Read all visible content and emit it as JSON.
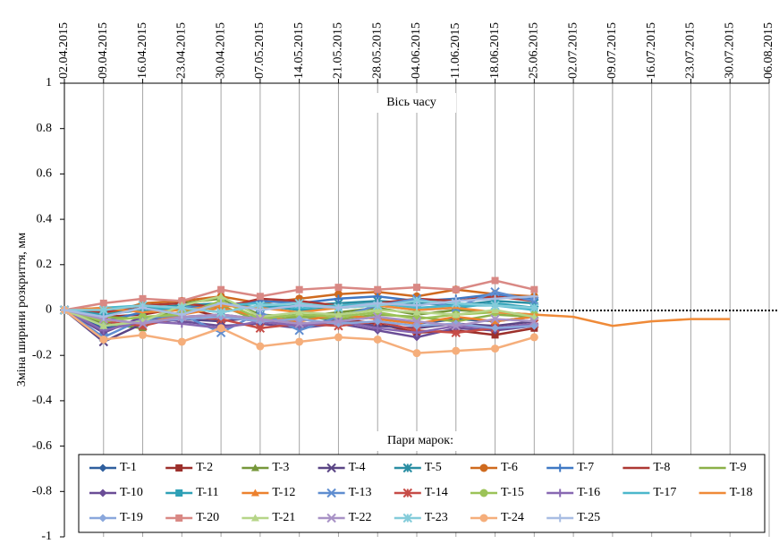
{
  "chart_data": {
    "type": "line",
    "ylabel": "Зміна ширини розкриття, мм",
    "annotation": "Вісь часу",
    "legend_title": "Пари марок:",
    "legend": "bottom",
    "grid": "x",
    "x": [
      "02.04.2015",
      "09.04.2015",
      "16.04.2015",
      "23.04.2015",
      "30.04.2015",
      "07.05.2015",
      "14.05.2015",
      "21.05.2015",
      "28.05.2015",
      "04.06.2015",
      "11.06.2015",
      "18.06.2015",
      "25.06.2015",
      "02.07.2015",
      "09.07.2015",
      "16.07.2015",
      "23.07.2015",
      "30.07.2015"
    ],
    "xlim": [
      "02.04.2015",
      "06.08.2015"
    ],
    "xticks": [
      "02.04.2015",
      "09.04.2015",
      "16.04.2015",
      "23.04.2015",
      "30.04.2015",
      "07.05.2015",
      "14.05.2015",
      "21.05.2015",
      "28.05.2015",
      "04.06.2015",
      "11.06.2015",
      "18.06.2015",
      "25.06.2015",
      "02.07.2015",
      "09.07.2015",
      "16.07.2015",
      "23.07.2015",
      "30.07.2015",
      "06.08.2015"
    ],
    "ylim": [
      -1,
      1
    ],
    "yticks": [
      -1,
      -0.8,
      -0.6,
      -0.4,
      -0.2,
      0,
      0.2,
      0.4,
      0.6,
      0.8,
      1
    ],
    "series": [
      {
        "name": "T-1",
        "color": "#2f5f9e",
        "marker": "diamond",
        "values": [
          0,
          -0.08,
          -0.05,
          -0.03,
          -0.02,
          -0.04,
          -0.02,
          -0.05,
          -0.03,
          -0.06,
          -0.04,
          -0.05,
          -0.03,
          null,
          null,
          null,
          null,
          null
        ]
      },
      {
        "name": "T-2",
        "color": "#9c2f2b",
        "marker": "square",
        "values": [
          0,
          -0.03,
          -0.02,
          0.01,
          -0.03,
          -0.05,
          -0.07,
          -0.04,
          -0.06,
          -0.1,
          -0.09,
          -0.11,
          -0.08,
          null,
          null,
          null,
          null,
          null
        ]
      },
      {
        "name": "T-3",
        "color": "#76973a",
        "marker": "triangle",
        "values": [
          0,
          -0.06,
          -0.08,
          0.03,
          0.05,
          -0.02,
          -0.03,
          -0.01,
          0.01,
          -0.02,
          0,
          -0.01,
          -0.02,
          null,
          null,
          null,
          null,
          null
        ]
      },
      {
        "name": "T-4",
        "color": "#5a4585",
        "marker": "x",
        "values": [
          0,
          -0.14,
          -0.06,
          -0.04,
          -0.05,
          -0.03,
          -0.06,
          -0.05,
          -0.07,
          -0.08,
          -0.06,
          -0.07,
          -0.05,
          null,
          null,
          null,
          null,
          null
        ]
      },
      {
        "name": "T-5",
        "color": "#2a8ea3",
        "marker": "star",
        "values": [
          0,
          -0.02,
          0.01,
          0.02,
          0.03,
          0.01,
          0.02,
          0.03,
          0.04,
          0.03,
          0.02,
          0.04,
          0.03,
          null,
          null,
          null,
          null,
          null
        ]
      },
      {
        "name": "T-6",
        "color": "#cf6a1e",
        "marker": "circle",
        "values": [
          0,
          -0.02,
          0.03,
          0.04,
          0.06,
          0.03,
          0.05,
          0.07,
          0.08,
          0.06,
          0.09,
          0.07,
          0.06,
          null,
          null,
          null,
          null,
          null
        ]
      },
      {
        "name": "T-7",
        "color": "#3f78c4",
        "marker": "plus",
        "values": [
          0,
          -0.05,
          -0.01,
          0.01,
          0.02,
          0.04,
          0.03,
          0.05,
          0.06,
          0.04,
          0.05,
          0.07,
          0.05,
          null,
          null,
          null,
          null,
          null
        ]
      },
      {
        "name": "T-8",
        "color": "#ad3833",
        "marker": "dash",
        "values": [
          0,
          -0.01,
          0.02,
          0.03,
          0.01,
          0.05,
          0.04,
          0.02,
          0.03,
          0.05,
          0.04,
          0.06,
          0.04,
          null,
          null,
          null,
          null,
          null
        ]
      },
      {
        "name": "T-9",
        "color": "#8bb048",
        "marker": "dash",
        "values": [
          0,
          -0.03,
          -0.04,
          -0.01,
          0.02,
          -0.05,
          -0.03,
          -0.04,
          -0.02,
          -0.03,
          -0.05,
          -0.02,
          -0.03,
          null,
          null,
          null,
          null,
          null
        ]
      },
      {
        "name": "T-10",
        "color": "#6a4d96",
        "marker": "diamond",
        "values": [
          0,
          -0.1,
          -0.03,
          -0.05,
          -0.07,
          -0.06,
          -0.08,
          -0.06,
          -0.09,
          -0.12,
          -0.08,
          -0.09,
          -0.07,
          null,
          null,
          null,
          null,
          null
        ]
      },
      {
        "name": "T-11",
        "color": "#2ea0b6",
        "marker": "square",
        "values": [
          0,
          -0.02,
          0,
          0.01,
          -0.01,
          0.02,
          0,
          0.01,
          0.02,
          0,
          0.01,
          0.03,
          0.01,
          null,
          null,
          null,
          null,
          null
        ]
      },
      {
        "name": "T-12",
        "color": "#ec812e",
        "marker": "triangle",
        "values": [
          0,
          -0.04,
          -0.06,
          -0.02,
          0.01,
          -0.03,
          -0.05,
          -0.02,
          -0.04,
          -0.06,
          -0.03,
          -0.05,
          -0.03,
          null,
          null,
          null,
          null,
          null
        ]
      },
      {
        "name": "T-13",
        "color": "#5f8dd0",
        "marker": "x",
        "values": [
          0,
          -0.12,
          -0.04,
          -0.02,
          -0.1,
          -0.01,
          -0.09,
          -0.03,
          0.02,
          0.05,
          0.01,
          0.08,
          0.04,
          null,
          null,
          null,
          null,
          null
        ]
      },
      {
        "name": "T-14",
        "color": "#c64c47",
        "marker": "star",
        "values": [
          0,
          -0.05,
          -0.07,
          -0.03,
          -0.04,
          -0.08,
          -0.06,
          -0.07,
          -0.05,
          -0.09,
          -0.1,
          -0.08,
          -0.06,
          null,
          null,
          null,
          null,
          null
        ]
      },
      {
        "name": "T-15",
        "color": "#9cc358",
        "marker": "circle",
        "values": [
          0,
          -0.05,
          -0.03,
          -0.02,
          0.04,
          -0.04,
          -0.02,
          -0.03,
          -0.01,
          -0.04,
          -0.02,
          -0.01,
          -0.02,
          null,
          null,
          null,
          null,
          null
        ]
      },
      {
        "name": "T-16",
        "color": "#8868b2",
        "marker": "plus",
        "values": [
          0,
          -0.09,
          -0.05,
          -0.06,
          -0.08,
          -0.05,
          -0.07,
          -0.05,
          -0.08,
          -0.1,
          -0.07,
          -0.08,
          -0.06,
          null,
          null,
          null,
          null,
          null
        ]
      },
      {
        "name": "T-17",
        "color": "#4bb7cb",
        "marker": "dash",
        "values": [
          0,
          0.01,
          0.02,
          0,
          0.02,
          0.03,
          0.01,
          0.02,
          0.03,
          0.01,
          0.02,
          0.02,
          0,
          null,
          null,
          null,
          null,
          null
        ]
      },
      {
        "name": "T-18",
        "color": "#ef8a38",
        "marker": "dash",
        "values": [
          0,
          0.01,
          -0.01,
          0,
          0.02,
          0.01,
          -0.01,
          0.01,
          0.02,
          0,
          0.01,
          -0.01,
          -0.02,
          -0.03,
          -0.07,
          -0.05,
          -0.04,
          -0.04
        ]
      },
      {
        "name": "T-19",
        "color": "#8aa7dc",
        "marker": "diamond",
        "values": [
          0,
          -0.07,
          -0.05,
          -0.04,
          -0.03,
          -0.05,
          -0.04,
          -0.06,
          -0.05,
          -0.07,
          -0.06,
          -0.08,
          -0.07,
          null,
          null,
          null,
          null,
          null
        ]
      },
      {
        "name": "T-20",
        "color": "#d98884",
        "marker": "square",
        "values": [
          0,
          0.03,
          0.05,
          0.04,
          0.09,
          0.06,
          0.09,
          0.1,
          0.09,
          0.1,
          0.09,
          0.13,
          0.09,
          null,
          null,
          null,
          null,
          null
        ]
      },
      {
        "name": "T-21",
        "color": "#b6d588",
        "marker": "triangle",
        "values": [
          0,
          -0.07,
          -0.05,
          0.02,
          0.06,
          -0.03,
          -0.01,
          -0.02,
          0,
          -0.01,
          -0.02,
          0,
          -0.03,
          null,
          null,
          null,
          null,
          null
        ]
      },
      {
        "name": "T-22",
        "color": "#a892c6",
        "marker": "x",
        "values": [
          0,
          -0.04,
          -0.06,
          -0.03,
          -0.02,
          -0.04,
          -0.06,
          -0.05,
          -0.03,
          -0.05,
          -0.07,
          -0.04,
          -0.05,
          null,
          null,
          null,
          null,
          null
        ]
      },
      {
        "name": "T-23",
        "color": "#84ccda",
        "marker": "star",
        "values": [
          0,
          0,
          0.02,
          0.01,
          -0.01,
          0.02,
          0.03,
          0.01,
          0.02,
          0.04,
          0.03,
          0.02,
          0.01,
          null,
          null,
          null,
          null,
          null
        ]
      },
      {
        "name": "T-24",
        "color": "#f5ae7b",
        "marker": "circle",
        "values": [
          0,
          -0.13,
          -0.11,
          -0.14,
          -0.08,
          -0.16,
          -0.14,
          -0.12,
          -0.13,
          -0.19,
          -0.18,
          -0.17,
          -0.12,
          null,
          null,
          null,
          null,
          null
        ]
      },
      {
        "name": "T-25",
        "color": "#a8bde3",
        "marker": "plus",
        "values": [
          0,
          -0.03,
          0.01,
          -0.02,
          0.03,
          0,
          0.02,
          0.01,
          0.03,
          0.02,
          0.04,
          0.05,
          0.06,
          null,
          null,
          null,
          null,
          null
        ]
      }
    ]
  }
}
